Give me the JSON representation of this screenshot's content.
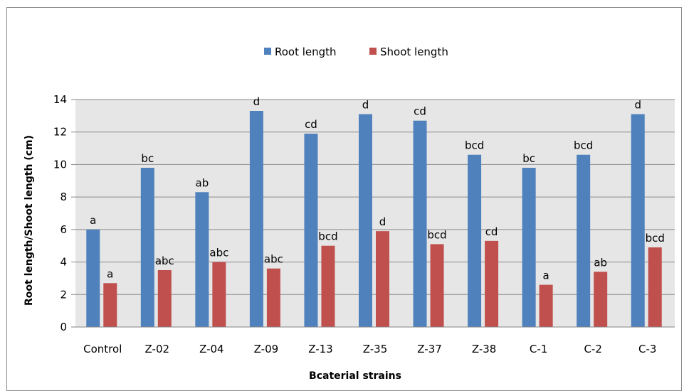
{
  "chart_data": {
    "type": "bar",
    "categories": [
      "Control",
      "Z-02",
      "Z-04",
      "Z-09",
      "Z-13",
      "Z-35",
      "Z-37",
      "Z-38",
      "C-1",
      "C-2",
      "C-3"
    ],
    "series": [
      {
        "name": "Root length",
        "color": "#4f81bd",
        "values": [
          6.0,
          9.8,
          8.3,
          13.3,
          11.9,
          13.1,
          12.7,
          10.6,
          9.8,
          10.6,
          13.1
        ],
        "labels": [
          "a",
          "bc",
          "ab",
          "d",
          "cd",
          "d",
          "cd",
          "bcd",
          "bc",
          "bcd",
          "d"
        ]
      },
      {
        "name": "Shoot length",
        "color": "#c0504d",
        "values": [
          2.7,
          3.5,
          4.0,
          3.6,
          5.0,
          5.9,
          5.1,
          5.3,
          2.6,
          3.4,
          4.9
        ],
        "labels": [
          "a",
          "abc",
          "abc",
          "abc",
          "bcd",
          "d",
          "bcd",
          "cd",
          "a",
          "ab",
          "bcd"
        ]
      }
    ],
    "xlabel": "Bcaterial strains",
    "ylabel": "Root length/Shoot length (cm)",
    "ylim": [
      0,
      14
    ],
    "yticks": [
      "0",
      "2",
      "4",
      "6",
      "8",
      "10",
      "12",
      "14"
    ],
    "grid": true,
    "legend": "top-center",
    "plot_background": "#e6e6e6"
  }
}
